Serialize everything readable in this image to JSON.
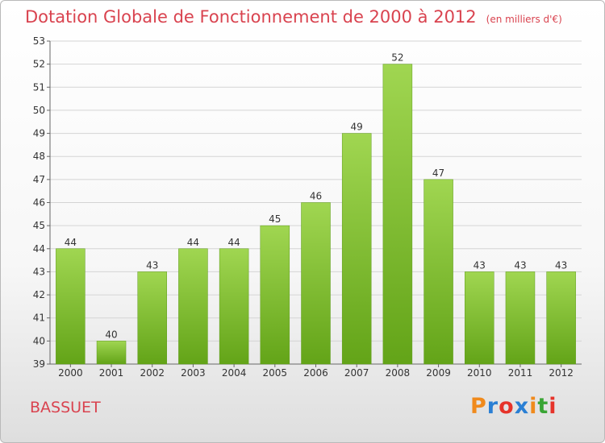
{
  "title": "Dotation Globale de Fonctionnement de 2000 à 2012",
  "subtitle": "(en milliers d'€)",
  "commune": "BASSUET",
  "logo": {
    "text": "Proxiti",
    "colors": [
      "#f08a1c",
      "#2a7fd4",
      "#e6332a",
      "#2a7fd4",
      "#f08a1c",
      "#3aa535",
      "#e6332a"
    ]
  },
  "chart_data": {
    "type": "bar",
    "categories": [
      "2000",
      "2001",
      "2002",
      "2003",
      "2004",
      "2005",
      "2006",
      "2007",
      "2008",
      "2009",
      "2010",
      "2011",
      "2012"
    ],
    "values": [
      44,
      40,
      43,
      44,
      44,
      45,
      46,
      49,
      52,
      47,
      43,
      43,
      43
    ],
    "ylim": [
      39,
      53
    ],
    "yticks": [
      39,
      40,
      41,
      42,
      43,
      44,
      45,
      46,
      47,
      48,
      49,
      50,
      51,
      52,
      53
    ],
    "grid": true,
    "bar_color": "#7cc12d"
  }
}
